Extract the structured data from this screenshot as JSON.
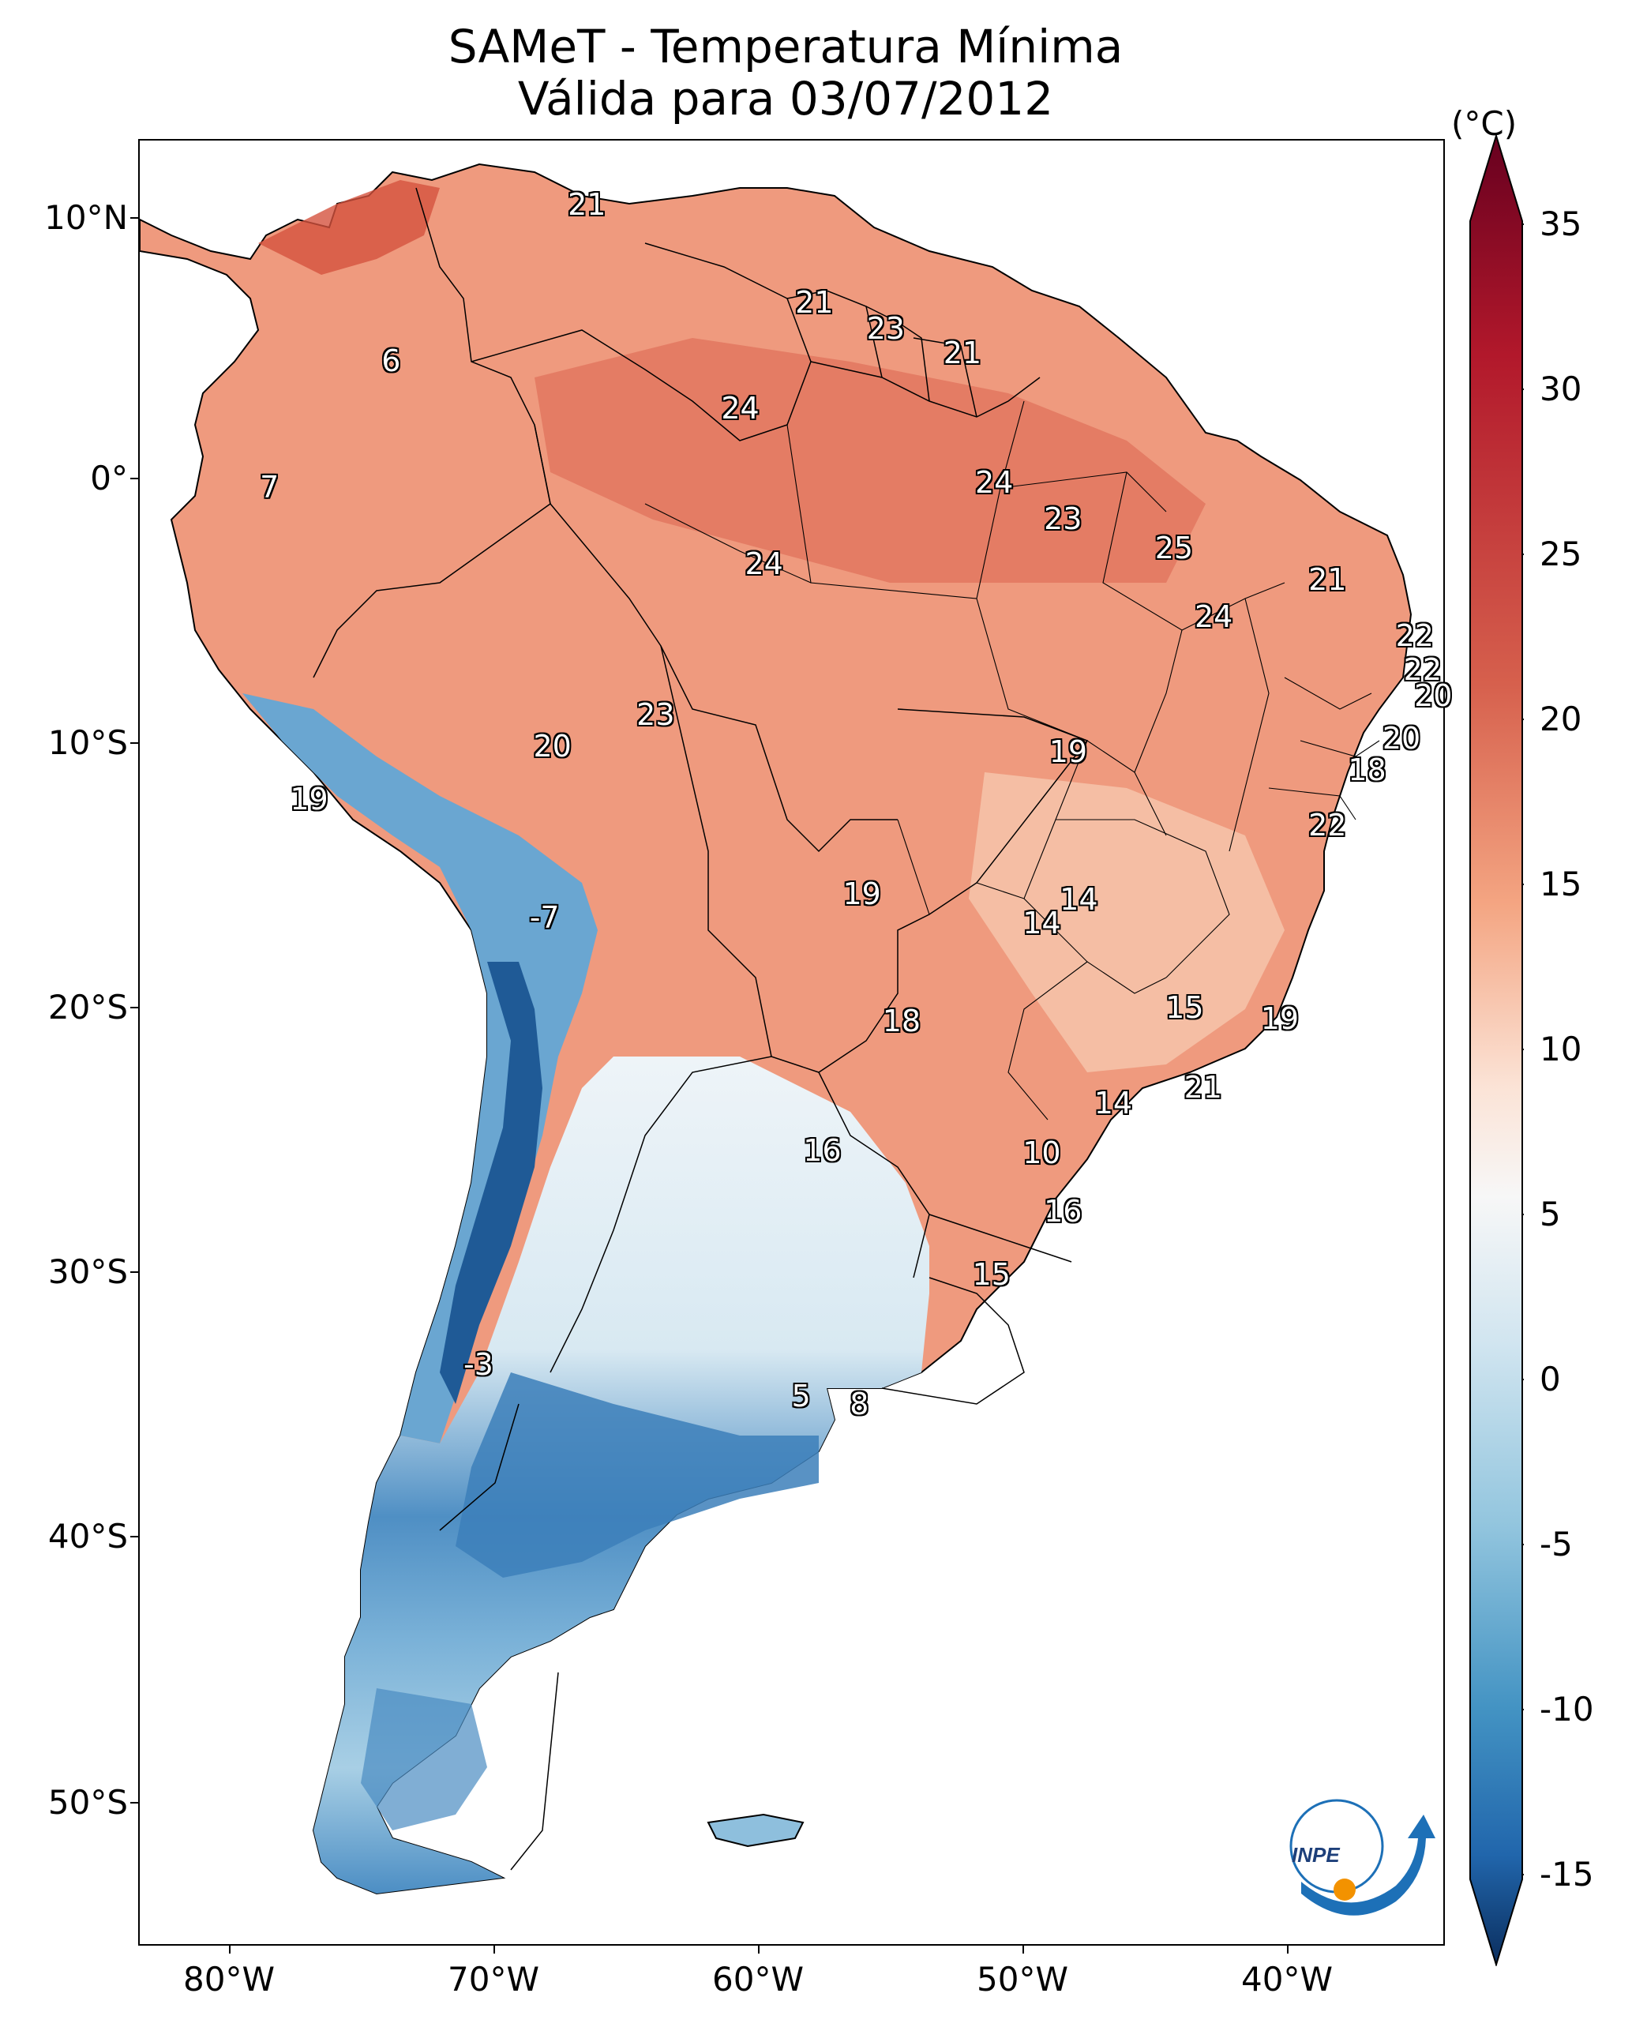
{
  "title": {
    "line1": "SAMeT - Temperatura Mínima",
    "line2": "Válida para 03/07/2012"
  },
  "axes": {
    "lat_ticks": [
      "10°N",
      "0°",
      "10°S",
      "20°S",
      "30°S",
      "40°S",
      "50°S"
    ],
    "lon_ticks": [
      "80°W",
      "70°W",
      "60°W",
      "50°W",
      "40°W"
    ]
  },
  "colorbar": {
    "unit": "(°C)",
    "ticks": [
      "35",
      "30",
      "25",
      "20",
      "15",
      "10",
      "5",
      "0",
      "-5",
      "-10",
      "-15"
    ],
    "range": [
      -15,
      35
    ],
    "colors": {
      "cold_end": "#0b2e5e",
      "cool": "#2f79b5",
      "mild": "#a9d0e6",
      "neutral": "#f7f7f7",
      "warm": "#f4a582",
      "hot": "#d6604d",
      "hot_end": "#67001f"
    }
  },
  "station_labels": [
    {
      "text": "21",
      "lon": -66.5,
      "lat": 10.5
    },
    {
      "text": "6",
      "lon": -73.9,
      "lat": 4.6
    },
    {
      "text": "7",
      "lon": -78.5,
      "lat": -0.2
    },
    {
      "text": "24",
      "lon": -60.7,
      "lat": 2.8
    },
    {
      "text": "21",
      "lon": -57.9,
      "lat": 6.8
    },
    {
      "text": "23",
      "lon": -55.2,
      "lat": 5.8
    },
    {
      "text": "21",
      "lon": -52.3,
      "lat": 4.9
    },
    {
      "text": "24",
      "lon": -51.1,
      "lat": 0.0
    },
    {
      "text": "23",
      "lon": -48.5,
      "lat": -1.4
    },
    {
      "text": "25",
      "lon": -44.3,
      "lat": -2.5
    },
    {
      "text": "24",
      "lon": -59.8,
      "lat": -3.1
    },
    {
      "text": "21",
      "lon": -38.5,
      "lat": -3.7
    },
    {
      "text": "24",
      "lon": -42.8,
      "lat": -5.1
    },
    {
      "text": "22",
      "lon": -35.2,
      "lat": -5.8
    },
    {
      "text": "22",
      "lon": -34.9,
      "lat": -7.1
    },
    {
      "text": "20",
      "lon": -35.7,
      "lat": -9.7
    },
    {
      "text": "20",
      "lon": -34.5,
      "lat": -8.1
    },
    {
      "text": "18",
      "lon": -37.0,
      "lat": -10.9
    },
    {
      "text": "22",
      "lon": -38.5,
      "lat": -13.0
    },
    {
      "text": "23",
      "lon": -63.9,
      "lat": -8.8
    },
    {
      "text": "20",
      "lon": -67.8,
      "lat": -10.0
    },
    {
      "text": "19",
      "lon": -48.3,
      "lat": -10.2
    },
    {
      "text": "19",
      "lon": -77.0,
      "lat": -12.0
    },
    {
      "text": "19",
      "lon": -56.1,
      "lat": -15.6
    },
    {
      "text": "14",
      "lon": -47.9,
      "lat": -15.8
    },
    {
      "text": "14",
      "lon": -49.3,
      "lat": -16.7
    },
    {
      "text": "-7",
      "lon": -68.1,
      "lat": -16.5
    },
    {
      "text": "18",
      "lon": -54.6,
      "lat": -20.4
    },
    {
      "text": "15",
      "lon": -43.9,
      "lat": -19.9
    },
    {
      "text": "19",
      "lon": -40.3,
      "lat": -20.3
    },
    {
      "text": "21",
      "lon": -43.2,
      "lat": -22.9
    },
    {
      "text": "14",
      "lon": -46.6,
      "lat": -23.5
    },
    {
      "text": "16",
      "lon": -57.6,
      "lat": -25.3
    },
    {
      "text": "10",
      "lon": -49.3,
      "lat": -25.4
    },
    {
      "text": "16",
      "lon": -48.5,
      "lat": -27.6
    },
    {
      "text": "15",
      "lon": -51.2,
      "lat": -30.0
    },
    {
      "text": "-3",
      "lon": -70.6,
      "lat": -33.4
    },
    {
      "text": "5",
      "lon": -58.4,
      "lat": -34.6
    },
    {
      "text": "8",
      "lon": -56.2,
      "lat": -34.9
    }
  ]
}
